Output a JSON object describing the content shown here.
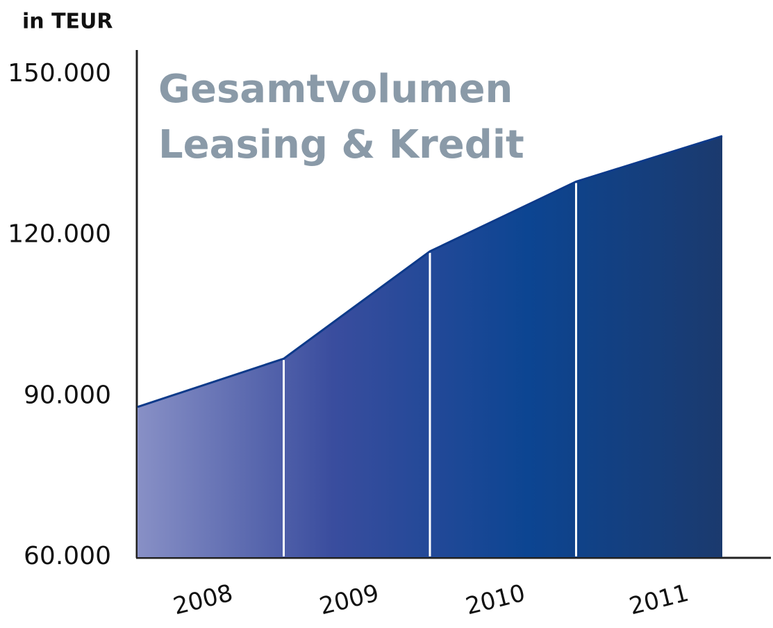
{
  "chart_data": {
    "type": "area",
    "title_lines": [
      "Gesamtvolumen",
      "Leasing & Kredit"
    ],
    "y_label": "in TEUR",
    "categories": [
      "2008",
      "2009",
      "2010",
      "2011",
      null
    ],
    "values": [
      88000,
      97000,
      117000,
      130000,
      138500
    ],
    "colors": [
      "#8890c6",
      "#3a4d9e",
      "#0c4592",
      "#1b3a6e"
    ],
    "line_color": "#0d3a8a",
    "ylim": [
      60000,
      150000
    ],
    "yticks": [
      {
        "value": 60000,
        "label": "60.000"
      },
      {
        "value": 90000,
        "label": "90.000"
      },
      {
        "value": 120000,
        "label": "120.000"
      },
      {
        "value": 150000,
        "label": "150.000"
      }
    ],
    "grid": false
  }
}
